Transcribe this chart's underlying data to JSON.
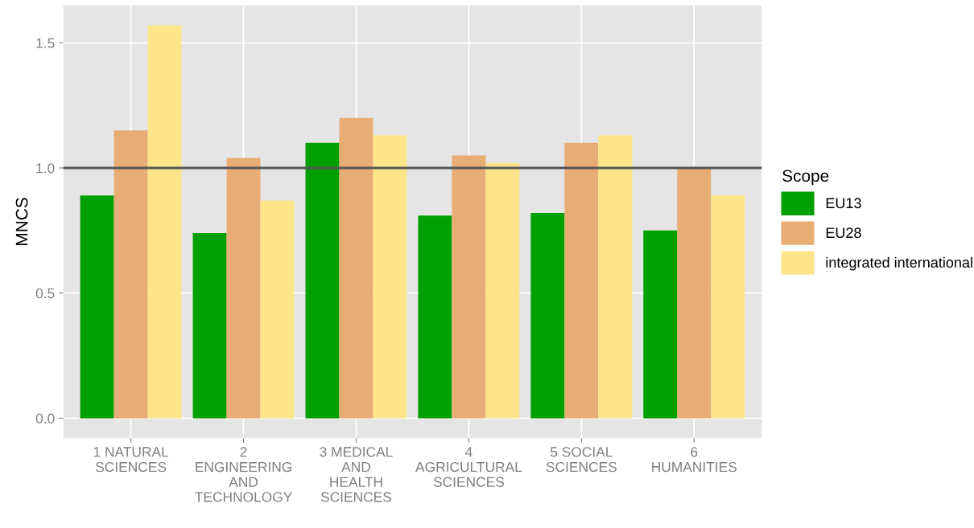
{
  "chart_data": {
    "type": "bar",
    "ylabel": "MNCS",
    "categories": [
      "1 NATURAL\nSCIENCES",
      "2\nENGINEERING\nAND\nTECHNOLOGY",
      "3 MEDICAL\nAND\nHEALTH\nSCIENCES",
      "4\nAGRICULTURAL\nSCIENCES",
      "5 SOCIAL\nSCIENCES",
      "6\nHUMANITIES"
    ],
    "series": [
      {
        "name": "EU13",
        "color": "#00a000",
        "values": [
          0.89,
          0.74,
          1.1,
          0.81,
          0.82,
          0.75
        ]
      },
      {
        "name": "EU28",
        "color": "#e8ad74",
        "values": [
          1.15,
          1.04,
          1.2,
          1.05,
          1.1,
          1.0
        ]
      },
      {
        "name": "integrated international",
        "color": "#fde58a",
        "values": [
          1.57,
          0.87,
          1.13,
          1.02,
          1.13,
          0.89
        ]
      }
    ],
    "legend": "right",
    "legend_title": "Scope",
    "ylim": [
      -0.08,
      1.65
    ],
    "yticks": [
      {
        "value": 0,
        "label": "0.0"
      },
      0.5,
      {
        "value": 1,
        "label": "1.0"
      },
      1.5
    ],
    "grid": true,
    "ref_lines": [
      {
        "axis": "y",
        "value": 1,
        "color": "#555555"
      }
    ]
  }
}
